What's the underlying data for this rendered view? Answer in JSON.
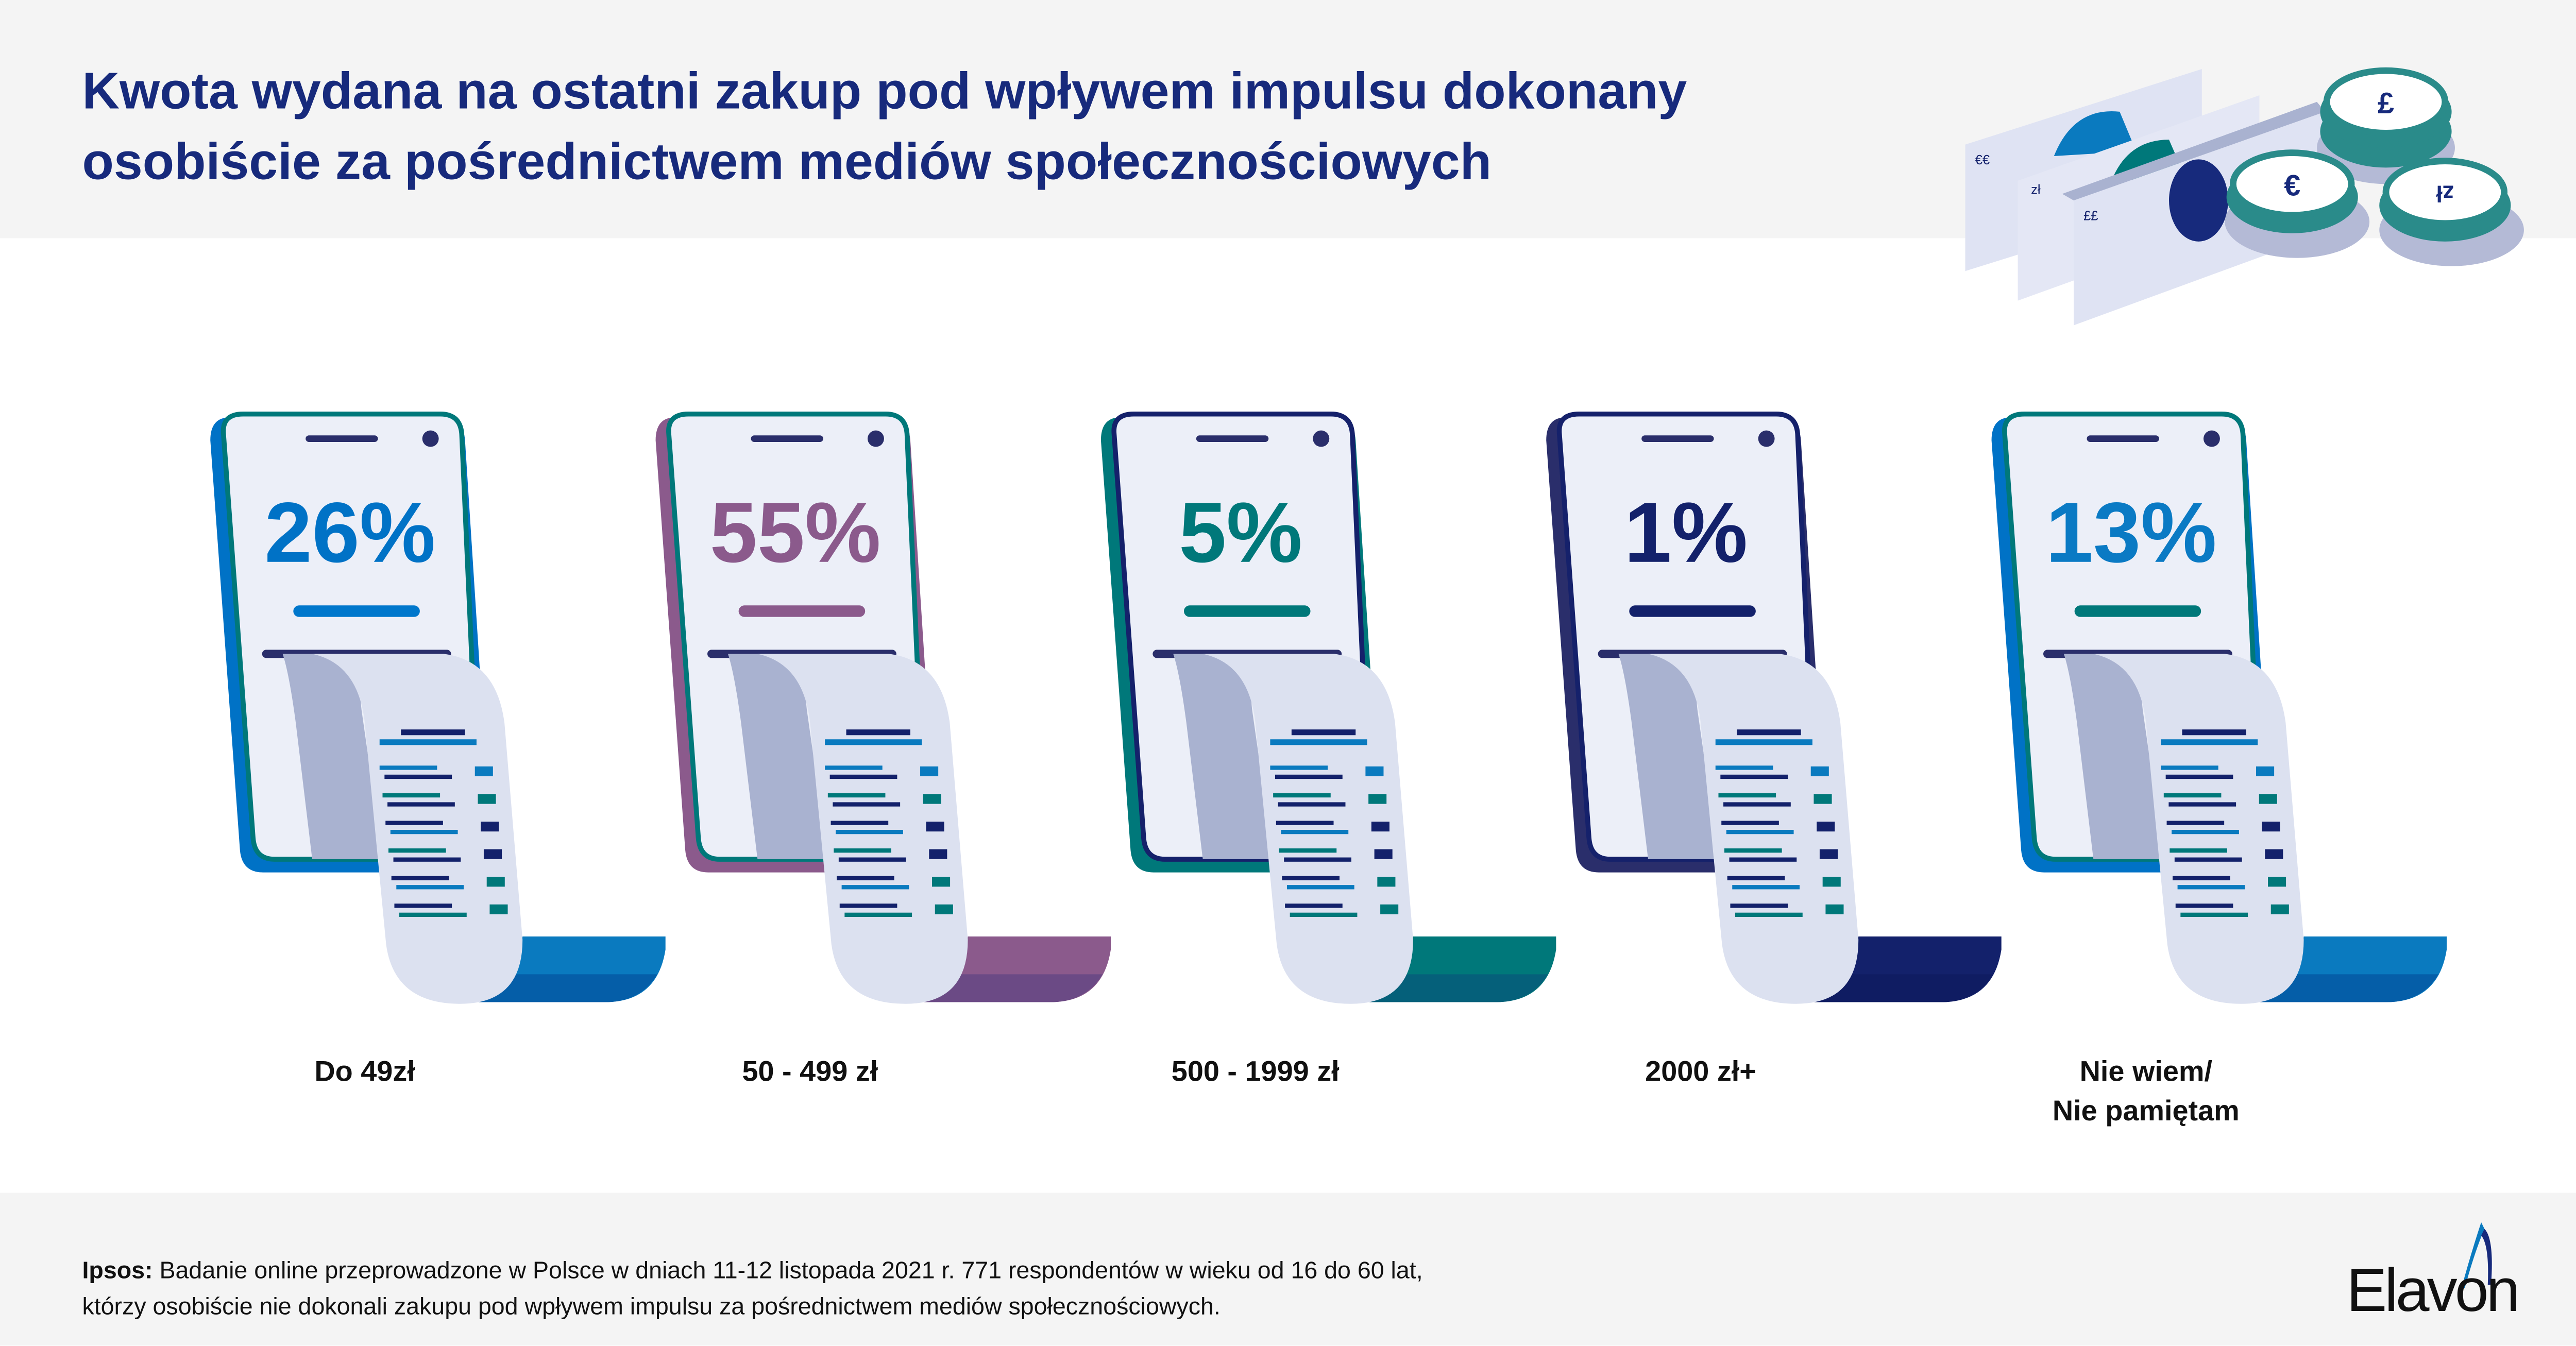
{
  "title": {
    "line1": "Kwota wydana na ostatni zakup pod wpływem impulsu dokonany",
    "line2": "osobiście za pośrednictwem mediów społecznościowych"
  },
  "illustration": {
    "banknote_labels": [
      "€€",
      "zł",
      "££"
    ],
    "coin_symbols": [
      "£",
      "€",
      "zł"
    ]
  },
  "phones": [
    {
      "percent": "26%",
      "percent_value": 26,
      "label_lines": [
        "Do 49zł"
      ],
      "back": "#0072c6",
      "border": "#00787a",
      "accent": "#0072c6",
      "bar": "#0077cc",
      "strip": "#0a7abf",
      "strip_dark": "#055ea8"
    },
    {
      "percent": "55%",
      "percent_value": 55,
      "label_lines": [
        "50 - 499 zł"
      ],
      "back": "#8b5a8c",
      "border": "#00787a",
      "accent": "#8b5a8c",
      "bar": "#8b5a8c",
      "strip": "#8b5a8c",
      "strip_dark": "#6b4a85"
    },
    {
      "percent": "5%",
      "percent_value": 5,
      "label_lines": [
        "500 - 1999 zł"
      ],
      "back": "#00787a",
      "border": "#15216b",
      "accent": "#00787a",
      "bar": "#00787a",
      "strip": "#00787a",
      "strip_dark": "#05607a"
    },
    {
      "percent": "1%",
      "percent_value": 1,
      "label_lines": [
        "2000 zł+"
      ],
      "back": "#2a2e6b",
      "border": "#15216b",
      "accent": "#13216b",
      "bar": "#13216b",
      "strip": "#13216b",
      "strip_dark": "#0f1c62"
    },
    {
      "percent": "13%",
      "percent_value": 13,
      "label_lines": [
        "Nie wiem/",
        "Nie pamiętam"
      ],
      "back": "#0072c6",
      "border": "#00787a",
      "accent": "#0a7ac4",
      "bar": "#00787a",
      "strip": "#0a7abf",
      "strip_dark": "#055ea8"
    }
  ],
  "footer": {
    "source_bold": "Ipsos:",
    "line1": " Badanie online przeprowadzone w Polsce w dniach 11-12 listopada 2021 r. 771 respondentów w wieku od 16 do 60 lat,",
    "line2": "którzy osobiście nie dokonali zakupu pod wpływem impulsu za pośrednictwem mediów społecznościowych."
  },
  "logo": {
    "text": "Elavon"
  },
  "colors": {
    "navy": "#172a7c",
    "receipt": "#dce1f0",
    "receipt_shadow": "#a9b2d0",
    "screen": "#eceff8",
    "blue": "#0a7abf",
    "teal": "#00787a",
    "dark": "#13216b"
  }
}
